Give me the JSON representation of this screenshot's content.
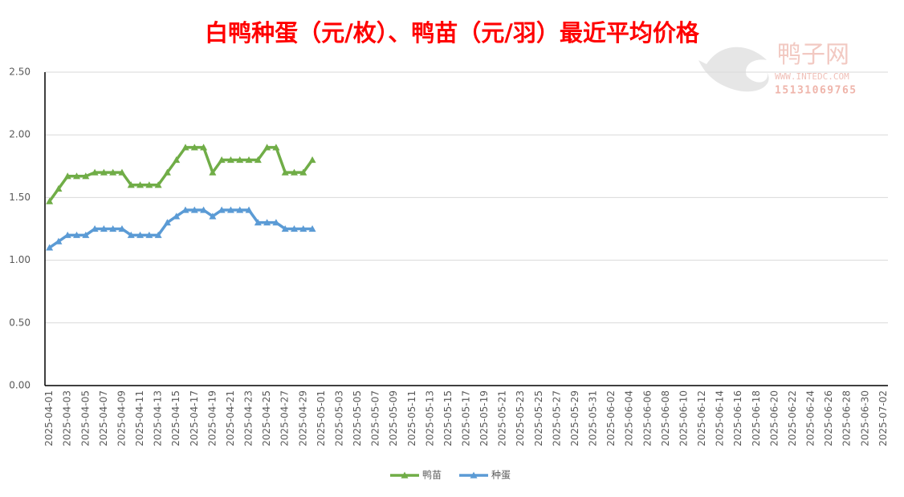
{
  "chart_data": {
    "type": "line",
    "title": "白鸭种蛋（元/枚）、鸭苗（元/羽）最近平均价格",
    "watermark": {
      "name": "鸭子网",
      "site": "WWW.INTEDC.COM",
      "phone": "15131069765"
    },
    "categories": [
      "2025-04-01",
      null,
      "2025-04-03",
      null,
      "2025-04-05",
      null,
      "2025-04-07",
      null,
      "2025-04-09",
      null,
      "2025-04-11",
      null,
      "2025-04-13",
      null,
      "2025-04-15",
      null,
      "2025-04-17",
      null,
      "2025-04-19",
      null,
      "2025-04-21",
      null,
      "2025-04-23",
      null,
      "2025-04-25",
      null,
      "2025-04-27",
      null,
      "2025-04-29",
      null,
      "2025-05-01",
      null,
      "2025-05-03",
      null,
      "2025-05-05",
      null,
      "2025-05-07",
      null,
      "2025-05-09",
      null,
      "2025-05-11",
      null,
      "2025-05-13",
      null,
      "2025-05-15",
      null,
      "2025-05-17",
      null,
      "2025-05-19",
      null,
      "2025-05-21",
      null,
      "2025-05-23",
      null,
      "2025-05-25",
      null,
      "2025-05-27",
      null,
      "2025-05-29",
      null,
      "2025-05-31",
      null,
      "2025-06-02",
      null,
      "2025-06-04",
      null,
      "2025-06-06",
      null,
      "2025-06-08",
      null,
      "2025-06-10",
      null,
      "2025-06-12",
      null,
      "2025-06-14",
      null,
      "2025-06-16",
      null,
      "2025-06-18",
      null,
      "2025-06-20",
      null,
      "2025-06-22",
      null,
      "2025-06-24",
      null,
      "2025-06-26",
      null,
      "2025-06-28",
      null,
      "2025-06-30",
      null,
      "2025-07-02"
    ],
    "series": [
      {
        "name": "鸭苗",
        "color": "#70ad47",
        "values": [
          1.47,
          1.57,
          1.67,
          1.67,
          1.67,
          1.7,
          1.7,
          1.7,
          1.7,
          1.6,
          1.6,
          1.6,
          1.6,
          1.7,
          1.8,
          1.9,
          1.9,
          1.9,
          1.7,
          1.8,
          1.8,
          1.8,
          1.8,
          1.8,
          1.9,
          1.9,
          1.7,
          1.7,
          1.7,
          1.8,
          null,
          null,
          null,
          null,
          null,
          null,
          null,
          null,
          null,
          null,
          null,
          null,
          null,
          null,
          null,
          null,
          null,
          null,
          null,
          null,
          null,
          null,
          null,
          null,
          null,
          null,
          null,
          null,
          null,
          null,
          null,
          null,
          null,
          null,
          null,
          null,
          null,
          null,
          null,
          null,
          null,
          null,
          null,
          null,
          null,
          null,
          null,
          null,
          null,
          null,
          null,
          null,
          null,
          null,
          null,
          null,
          null,
          null,
          null,
          null,
          null,
          null,
          null
        ]
      },
      {
        "name": "种蛋",
        "color": "#5b9bd5",
        "values": [
          1.1,
          1.15,
          1.2,
          1.2,
          1.2,
          1.25,
          1.25,
          1.25,
          1.25,
          1.2,
          1.2,
          1.2,
          1.2,
          1.3,
          1.35,
          1.4,
          1.4,
          1.4,
          1.35,
          1.4,
          1.4,
          1.4,
          1.4,
          1.3,
          1.3,
          1.3,
          1.25,
          1.25,
          1.25,
          1.25,
          null,
          null,
          null,
          null,
          null,
          null,
          null,
          null,
          null,
          null,
          null,
          null,
          null,
          null,
          null,
          null,
          null,
          null,
          null,
          null,
          null,
          null,
          null,
          null,
          null,
          null,
          null,
          null,
          null,
          null,
          null,
          null,
          null,
          null,
          null,
          null,
          null,
          null,
          null,
          null,
          null,
          null,
          null,
          null,
          null,
          null,
          null,
          null,
          null,
          null,
          null,
          null,
          null,
          null,
          null,
          null,
          null,
          null,
          null,
          null,
          null,
          null,
          null
        ]
      }
    ],
    "ylim": [
      0,
      2.5
    ],
    "yticks": [
      {
        "value": 0,
        "label": "0.00"
      },
      {
        "value": 0.5,
        "label": "0.50"
      },
      {
        "value": 1,
        "label": "1.00"
      },
      {
        "value": 1.5,
        "label": "1.50"
      },
      {
        "value": 2,
        "label": "2.00"
      },
      {
        "value": 2.5,
        "label": "2.50"
      }
    ],
    "grid": true,
    "legend": "bottom"
  }
}
